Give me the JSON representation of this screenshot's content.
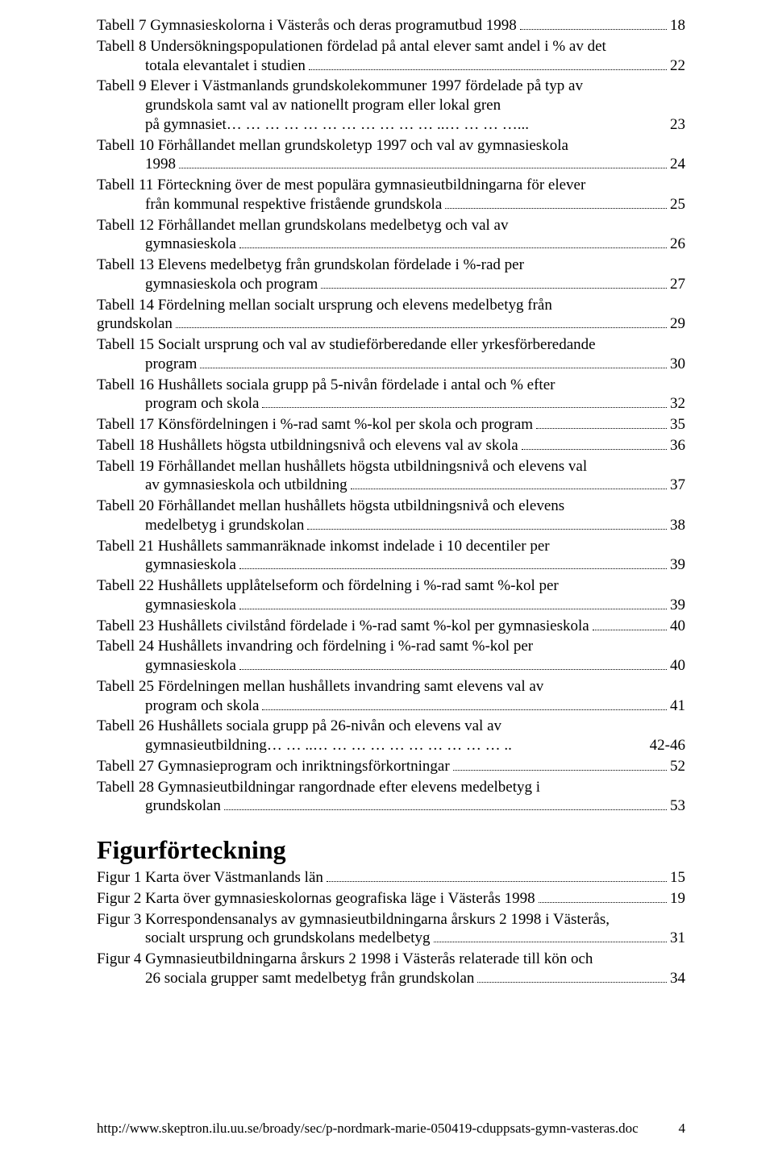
{
  "toc_tables": [
    {
      "first": "Tabell 7 Gymnasieskolorna i Västerås och deras programutbud 1998",
      "cont": null,
      "page": "18",
      "leader": true
    },
    {
      "first": "Tabell 8 Undersökningspopulationen fördelad på antal elever samt andel i % av det",
      "cont": "totala elevantalet i studien",
      "page": "22",
      "leader": true
    },
    {
      "first": "Tabell 9 Elever i Västmanlands grundskolekommuner 1997 fördelade på typ av",
      "cont": "grundskola samt val av nationellt program eller lokal gren\npå gymnasiet… … … … … … … … … … … ..… … … …...",
      "page": "23",
      "leader": false
    },
    {
      "first": "Tabell 10 Förhållandet mellan grundskoletyp 1997 och val av gymnasieskola",
      "cont": "1998",
      "page": "24",
      "leader": true
    },
    {
      "first": "Tabell 11 Förteckning över de mest populära gymnasieutbildningarna för elever",
      "cont": "från kommunal respektive fristående grundskola",
      "page": "25",
      "leader": true
    },
    {
      "first": "Tabell 12 Förhållandet mellan grundskolans medelbetyg och val av",
      "cont": "gymnasieskola",
      "page": "26",
      "leader": true
    },
    {
      "first": "Tabell 13 Elevens medelbetyg från grundskolan fördelade i %-rad per",
      "cont": "gymnasieskola och program",
      "page": "27",
      "leader": true
    },
    {
      "first": "Tabell 14 Fördelning mellan socialt ursprung och elevens medelbetyg från",
      "cont": "grundskolan",
      "page": "29",
      "leader": true,
      "noindent": true
    },
    {
      "first": "Tabell 15 Socialt ursprung och val av studieförberedande eller yrkesförberedande",
      "cont": "program",
      "page": "30",
      "leader": true
    },
    {
      "first": "Tabell 16 Hushållets sociala grupp på 5-nivån fördelade i antal och % efter",
      "cont": "program och skola",
      "page": "32",
      "leader": true
    },
    {
      "first": "Tabell 17 Könsfördelningen i %-rad samt %-kol per skola och program",
      "cont": null,
      "page": "35",
      "leader": true
    },
    {
      "first": "Tabell 18 Hushållets högsta utbildningsnivå och elevens val av skola",
      "cont": null,
      "page": "36",
      "leader": true
    },
    {
      "first": "Tabell 19 Förhållandet mellan hushållets högsta utbildningsnivå och elevens val",
      "cont": "av gymnasieskola och utbildning",
      "page": "37",
      "leader": true
    },
    {
      "first": "Tabell 20 Förhållandet mellan hushållets högsta utbildningsnivå och elevens",
      "cont": "medelbetyg i grundskolan",
      "page": "38",
      "leader": true
    },
    {
      "first": "Tabell 21 Hushållets sammanräknade inkomst indelade i 10 decentiler per",
      "cont": "gymnasieskola",
      "page": "39",
      "leader": true
    },
    {
      "first": "Tabell 22 Hushållets upplåtelseform och fördelning i %-rad samt %-kol per",
      "cont": "gymnasieskola",
      "page": "39",
      "leader": true
    },
    {
      "first": "Tabell 23 Hushållets civilstånd fördelade i %-rad samt %-kol per gymnasieskola",
      "cont": null,
      "page": "40",
      "leader": true
    },
    {
      "first": "Tabell 24 Hushållets invandring och fördelning i %-rad samt %-kol per",
      "cont": "gymnasieskola",
      "page": "40",
      "leader": true
    },
    {
      "first": "Tabell 25 Fördelningen mellan hushållets invandring samt elevens val av",
      "cont": "program och skola",
      "page": "41",
      "leader": true
    },
    {
      "first": "Tabell 26 Hushållets sociala grupp på 26-nivån och elevens val av",
      "cont": "gymnasieutbildning… … ..… … … … … … … … … … ..",
      "page": "42-46",
      "leader": false
    },
    {
      "first": "Tabell 27 Gymnasieprogram och inriktningsförkortningar ",
      "cont": null,
      "page": "52",
      "leader": true
    },
    {
      "first": "Tabell 28 Gymnasieutbildningar rangordnade efter elevens medelbetyg i",
      "cont": "grundskolan",
      "page": "53",
      "leader": true
    }
  ],
  "figures_heading": "Figurförteckning",
  "toc_figures": [
    {
      "first": "Figur 1 Karta över Västmanlands län",
      "cont": null,
      "page": "15",
      "leader": true
    },
    {
      "first": "Figur 2 Karta över gymnasieskolornas geografiska läge i Västerås 1998",
      "cont": null,
      "page": "19",
      "leader": true
    },
    {
      "first": "Figur 3 Korrespondensanalys av gymnasieutbildningarna årskurs 2 1998 i Västerås,",
      "cont": "socialt ursprung och grundskolans medelbetyg",
      "page": "31",
      "leader": true
    },
    {
      "first": "Figur 4 Gymnasieutbildningarna årskurs 2 1998 i Västerås relaterade till kön och",
      "cont": "26 sociala grupper samt medelbetyg från grundskolan",
      "page": "34",
      "leader": true
    }
  ],
  "footer": {
    "url": "http://www.skeptron.ilu.uu.se/broady/sec/p-nordmark-marie-050419-cduppsats-gymn-vasteras.doc",
    "pagenum": "4"
  }
}
